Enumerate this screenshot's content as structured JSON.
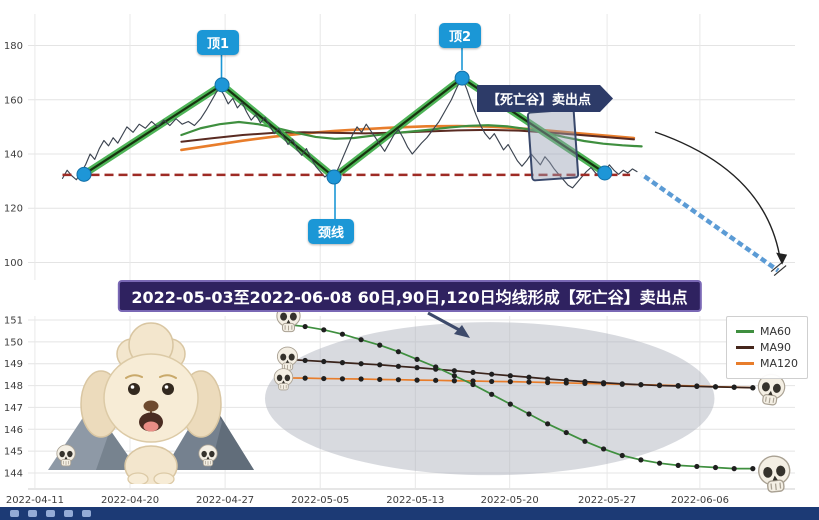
{
  "banner": {
    "text": "2022-05-03至2022-06-08 60日,90日,120日均线形成【死亡谷】卖出点"
  },
  "annotations": {
    "top1": "顶1",
    "top2": "顶2",
    "neckline": "颈线",
    "sell_point": "【死亡谷】卖出点"
  },
  "legend": {
    "items": [
      {
        "label": "MA60",
        "color": "#3f8f3f"
      },
      {
        "label": "MA90",
        "color": "#45261c"
      },
      {
        "label": "MA120",
        "color": "#e87d2b"
      }
    ]
  },
  "colors": {
    "badge_blue": "#1b97d6",
    "banner_bg": "#2f2260",
    "sell_label_bg": "#2d3b68",
    "neckline_red": "#9e2b25",
    "trend_green": "#3fae49",
    "projection_blue": "#5b9bd5",
    "taskbar_bg": "#1c3a75"
  },
  "chart_data": [
    {
      "type": "line",
      "panel": "price-top",
      "ylim": [
        95,
        185
      ],
      "y_ticks": [
        100,
        120,
        140,
        160,
        180
      ],
      "x_tick_labels": [
        "2022-04-11",
        "2022-04-20",
        "2022-04-27",
        "2022-05-05",
        "2022-05-13",
        "2022-05-20",
        "2022-05-27",
        "2022-06-06"
      ],
      "x_tick_pos": [
        0.009,
        0.133,
        0.257,
        0.381,
        0.505,
        0.628,
        0.755,
        0.876
      ],
      "neckline_value": 132.3,
      "trend_points": [
        [
          0.073,
          132.5
        ],
        [
          0.253,
          165.5
        ],
        [
          0.399,
          131.5
        ],
        [
          0.566,
          168
        ],
        [
          0.752,
          133
        ]
      ],
      "markers": [
        [
          0.073,
          132.5
        ],
        [
          0.253,
          165.5
        ],
        [
          0.399,
          131.5
        ],
        [
          0.566,
          168
        ],
        [
          0.752,
          133
        ]
      ],
      "projection": {
        "from": [
          0.8,
          132.5
        ],
        "to": [
          0.978,
          97
        ]
      },
      "series": [
        {
          "name": "price",
          "color": "#3c4450",
          "width": 1.15,
          "points": [
            [
              0.045,
              131
            ],
            [
              0.051,
              134
            ],
            [
              0.057,
              132
            ],
            [
              0.063,
              130.5
            ],
            [
              0.069,
              133
            ],
            [
              0.075,
              136
            ],
            [
              0.081,
              140
            ],
            [
              0.087,
              138
            ],
            [
              0.093,
              142
            ],
            [
              0.099,
              145
            ],
            [
              0.105,
              143
            ],
            [
              0.111,
              146
            ],
            [
              0.117,
              144
            ],
            [
              0.123,
              147
            ],
            [
              0.129,
              150
            ],
            [
              0.137,
              148
            ],
            [
              0.145,
              151
            ],
            [
              0.153,
              149.5
            ],
            [
              0.161,
              152
            ],
            [
              0.169,
              150
            ],
            [
              0.177,
              152.5
            ],
            [
              0.185,
              150.5
            ],
            [
              0.193,
              153
            ],
            [
              0.201,
              151
            ],
            [
              0.209,
              152
            ],
            [
              0.217,
              150.5
            ],
            [
              0.225,
              153
            ],
            [
              0.233,
              156.5
            ],
            [
              0.241,
              160.5
            ],
            [
              0.249,
              164.5
            ],
            [
              0.255,
              162
            ],
            [
              0.261,
              158.5
            ],
            [
              0.267,
              160.5
            ],
            [
              0.273,
              157
            ],
            [
              0.279,
              159
            ],
            [
              0.285,
              155.5
            ],
            [
              0.291,
              152.5
            ],
            [
              0.297,
              154.5
            ],
            [
              0.303,
              151.5
            ],
            [
              0.309,
              153.5
            ],
            [
              0.315,
              150.5
            ],
            [
              0.321,
              147.5
            ],
            [
              0.327,
              149.5
            ],
            [
              0.333,
              146.5
            ],
            [
              0.339,
              143.5
            ],
            [
              0.345,
              145.5
            ],
            [
              0.351,
              141.5
            ],
            [
              0.357,
              139.5
            ],
            [
              0.363,
              142
            ],
            [
              0.369,
              138.5
            ],
            [
              0.375,
              135.5
            ],
            [
              0.381,
              133.5
            ],
            [
              0.387,
              131.5
            ],
            [
              0.393,
              133
            ],
            [
              0.399,
              131.5
            ],
            [
              0.405,
              135
            ],
            [
              0.411,
              139
            ],
            [
              0.417,
              143
            ],
            [
              0.423,
              147
            ],
            [
              0.429,
              150
            ],
            [
              0.435,
              148
            ],
            [
              0.441,
              151
            ],
            [
              0.447,
              148.5
            ],
            [
              0.453,
              146
            ],
            [
              0.459,
              143.5
            ],
            [
              0.465,
              141
            ],
            [
              0.471,
              144
            ],
            [
              0.477,
              147
            ],
            [
              0.483,
              149
            ],
            [
              0.489,
              146
            ],
            [
              0.495,
              142.5
            ],
            [
              0.501,
              140
            ],
            [
              0.507,
              142
            ],
            [
              0.513,
              144
            ],
            [
              0.52,
              146
            ],
            [
              0.528,
              149
            ],
            [
              0.536,
              152
            ],
            [
              0.544,
              156
            ],
            [
              0.552,
              160
            ],
            [
              0.56,
              165
            ],
            [
              0.566,
              168
            ],
            [
              0.572,
              164
            ],
            [
              0.578,
              159
            ],
            [
              0.584,
              154.5
            ],
            [
              0.59,
              150.5
            ],
            [
              0.596,
              147.5
            ],
            [
              0.602,
              145.5
            ],
            [
              0.608,
              147.5
            ],
            [
              0.614,
              144.5
            ],
            [
              0.62,
              141.5
            ],
            [
              0.626,
              143.5
            ],
            [
              0.632,
              140.5
            ],
            [
              0.638,
              137.5
            ],
            [
              0.644,
              135.5
            ],
            [
              0.65,
              137.5
            ],
            [
              0.656,
              140
            ],
            [
              0.662,
              138
            ],
            [
              0.668,
              136
            ],
            [
              0.674,
              139
            ],
            [
              0.68,
              137
            ],
            [
              0.686,
              134.5
            ],
            [
              0.692,
              132.5
            ],
            [
              0.698,
              130.5
            ],
            [
              0.704,
              128.5
            ],
            [
              0.71,
              127.5
            ],
            [
              0.716,
              129.5
            ],
            [
              0.722,
              131.5
            ],
            [
              0.728,
              133.5
            ],
            [
              0.734,
              135
            ],
            [
              0.74,
              133
            ],
            [
              0.746,
              131.5
            ],
            [
              0.752,
              133.5
            ],
            [
              0.758,
              136
            ],
            [
              0.764,
              134
            ],
            [
              0.77,
              132.5
            ],
            [
              0.776,
              134
            ],
            [
              0.782,
              133
            ],
            [
              0.788,
              134.5
            ],
            [
              0.794,
              133.5
            ]
          ]
        },
        {
          "name": "MA60",
          "color": "#3f8f3f",
          "width": 2.2,
          "points": [
            [
              0.2,
              147
            ],
            [
              0.225,
              149.5
            ],
            [
              0.25,
              151
            ],
            [
              0.275,
              151.8
            ],
            [
              0.3,
              151
            ],
            [
              0.325,
              149.5
            ],
            [
              0.35,
              147.8
            ],
            [
              0.375,
              146.3
            ],
            [
              0.4,
              145.6
            ],
            [
              0.425,
              145.9
            ],
            [
              0.45,
              146.8
            ],
            [
              0.475,
              147.6
            ],
            [
              0.5,
              148.3
            ],
            [
              0.525,
              149
            ],
            [
              0.55,
              149.8
            ],
            [
              0.575,
              150.4
            ],
            [
              0.6,
              150.6
            ],
            [
              0.625,
              150.2
            ],
            [
              0.65,
              149.2
            ],
            [
              0.675,
              147.8
            ],
            [
              0.7,
              146.2
            ],
            [
              0.725,
              144.8
            ],
            [
              0.75,
              143.8
            ],
            [
              0.775,
              143.2
            ],
            [
              0.8,
              142.8
            ]
          ]
        },
        {
          "name": "MA90",
          "color": "#5a2b22",
          "width": 2,
          "points": [
            [
              0.2,
              144.5
            ],
            [
              0.24,
              145.8
            ],
            [
              0.28,
              147
            ],
            [
              0.32,
              147.8
            ],
            [
              0.36,
              148
            ],
            [
              0.4,
              147.8
            ],
            [
              0.44,
              147.6
            ],
            [
              0.48,
              147.9
            ],
            [
              0.52,
              148.3
            ],
            [
              0.56,
              148.7
            ],
            [
              0.6,
              148.9
            ],
            [
              0.64,
              148.6
            ],
            [
              0.68,
              147.9
            ],
            [
              0.72,
              147
            ],
            [
              0.76,
              146.1
            ],
            [
              0.79,
              145.4
            ]
          ]
        },
        {
          "name": "MA120",
          "color": "#e87d2b",
          "width": 2.6,
          "points": [
            [
              0.2,
              141.5
            ],
            [
              0.24,
              143.2
            ],
            [
              0.28,
              144.9
            ],
            [
              0.32,
              146.4
            ],
            [
              0.36,
              147.6
            ],
            [
              0.4,
              148.5
            ],
            [
              0.44,
              149.2
            ],
            [
              0.48,
              149.8
            ],
            [
              0.52,
              150.2
            ],
            [
              0.56,
              150.3
            ],
            [
              0.6,
              150.1
            ],
            [
              0.64,
              149.5
            ],
            [
              0.68,
              148.6
            ],
            [
              0.72,
              147.6
            ],
            [
              0.76,
              146.6
            ],
            [
              0.79,
              145.9
            ]
          ]
        }
      ]
    },
    {
      "type": "line",
      "panel": "ma-detail-bottom",
      "ylim": [
        143.8,
        151.3
      ],
      "y_ticks": [
        144,
        145,
        146,
        147,
        148,
        149,
        150,
        151
      ],
      "x_start": 0.337,
      "x_end": 0.945,
      "dates": [
        "2022-05-03",
        "2022-05-04",
        "2022-05-05",
        "2022-05-06",
        "2022-05-09",
        "2022-05-10",
        "2022-05-11",
        "2022-05-12",
        "2022-05-13",
        "2022-05-16",
        "2022-05-17",
        "2022-05-18",
        "2022-05-19",
        "2022-05-20",
        "2022-05-23",
        "2022-05-24",
        "2022-05-25",
        "2022-05-26",
        "2022-05-27",
        "2022-05-30",
        "2022-05-31",
        "2022-06-01",
        "2022-06-02",
        "2022-06-06",
        "2022-06-07",
        "2022-06-08"
      ],
      "series": [
        {
          "name": "MA60",
          "color": "#3f8f3f",
          "values": [
            150.8,
            150.7,
            150.55,
            150.35,
            150.1,
            149.85,
            149.55,
            149.2,
            148.85,
            148.45,
            148.05,
            147.6,
            147.15,
            146.7,
            146.25,
            145.85,
            145.45,
            145.1,
            144.8,
            144.6,
            144.45,
            144.35,
            144.3,
            144.25,
            144.2,
            144.2
          ]
        },
        {
          "name": "MA90",
          "color": "#3a241c",
          "values": [
            149.2,
            149.15,
            149.1,
            149.05,
            149.0,
            148.95,
            148.88,
            148.82,
            148.75,
            148.68,
            148.6,
            148.52,
            148.45,
            148.38,
            148.3,
            148.24,
            148.18,
            148.13,
            148.08,
            148.04,
            148.0,
            147.98,
            147.96,
            147.94,
            147.92,
            147.9
          ]
        },
        {
          "name": "MA120",
          "color": "#e87d2b",
          "values": [
            148.35,
            148.34,
            148.32,
            148.31,
            148.3,
            148.28,
            148.27,
            148.25,
            148.24,
            148.22,
            148.21,
            148.19,
            148.18,
            148.16,
            148.14,
            148.12,
            148.1,
            148.08,
            148.06,
            148.04,
            148.02,
            148.0,
            147.98,
            147.95,
            147.93,
            147.9
          ]
        }
      ],
      "highlight_ellipse": {
        "cx": 0.602,
        "cy": 147.4,
        "rx": 0.293,
        "ry": 3.5
      }
    }
  ]
}
